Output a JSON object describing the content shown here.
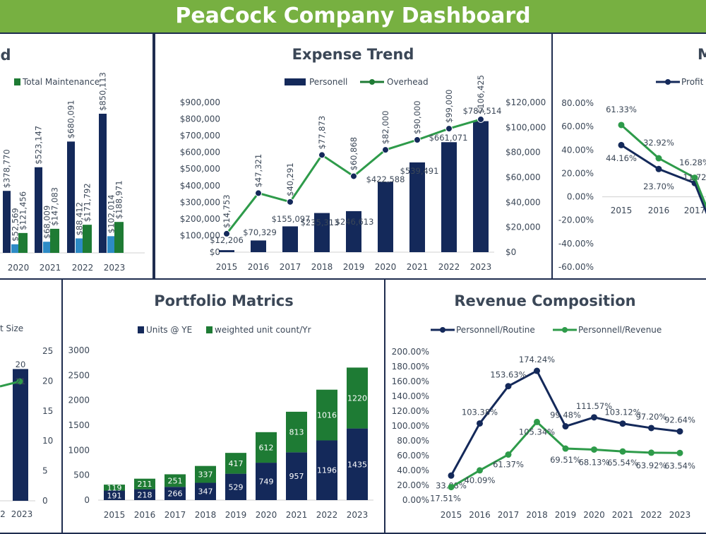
{
  "header": {
    "title": "PeaCock Company Dashboard"
  },
  "colors": {
    "navy": "#14295a",
    "green": "#1e7b34",
    "lightgreen": "#2e9b4a",
    "blue": "#2d8bc6",
    "header": "#77b041"
  },
  "chart_data": [
    {
      "id": "maintenance",
      "type": "bar",
      "title": "d",
      "legend": [
        "Total Maintenance"
      ],
      "categories": [
        "2020",
        "2021",
        "2022",
        "2023"
      ],
      "series": [
        {
          "values": [
            378770,
            523147,
            680091,
            850113
          ],
          "labels": [
            "$378,770",
            "$523,147",
            "$680,091",
            "$850,113"
          ]
        },
        {
          "values": [
            52569,
            68009,
            88412,
            102014
          ],
          "labels": [
            "$52,569",
            "$68,009",
            "$88,412",
            "$102,014"
          ]
        },
        {
          "name": "Total Maintenance",
          "values": [
            121456,
            147083,
            171792,
            188971
          ],
          "labels": [
            "$121,456",
            "$147,083",
            "$171,792",
            "$188,971"
          ]
        }
      ]
    },
    {
      "id": "expense",
      "type": "bar",
      "title": "Expense Trend",
      "categories": [
        "2015",
        "2016",
        "2017",
        "2018",
        "2019",
        "2020",
        "2021",
        "2022",
        "2023"
      ],
      "series": [
        {
          "name": "Personell",
          "type": "bar",
          "axis": "left",
          "values": [
            12206,
            70329,
            155097,
            235313,
            246613,
            422588,
            539491,
            661071,
            787514
          ],
          "labels": [
            "$12,206",
            "$70,329",
            "$155,097",
            "$235,313",
            "$246,613",
            "$422,588",
            "$539,491",
            "$661,071",
            "$787,514"
          ]
        },
        {
          "name": "Overhead",
          "type": "line",
          "axis": "right",
          "values": [
            14753,
            47321,
            40291,
            77873,
            60868,
            82000,
            90000,
            99000,
            106425
          ],
          "labels": [
            "$14,753",
            "$47,321",
            "$40,291",
            "$77,873",
            "$60,868",
            "$82,000",
            "$90,000",
            "$99,000",
            "$106,425"
          ]
        }
      ],
      "y_left": {
        "ylim": [
          0,
          900000
        ],
        "ticks": [
          "$0",
          "$100,000",
          "$200,000",
          "$300,000",
          "$400,000",
          "$500,000",
          "$600,000",
          "$700,000",
          "$800,000",
          "$900,000"
        ]
      },
      "y_right": {
        "ylim": [
          0,
          120000
        ],
        "ticks": [
          "$0",
          "$20,000",
          "$40,000",
          "$60,000",
          "$80,000",
          "$100,000",
          "$120,000"
        ]
      }
    },
    {
      "id": "margin",
      "type": "line",
      "title": "M",
      "legend": [
        "Profit"
      ],
      "categories": [
        "2015",
        "2016",
        "2017"
      ],
      "series": [
        {
          "name": "Profit",
          "values": [
            44.16,
            23.7,
            11.72
          ],
          "labels": [
            "44.16%",
            "23.70%",
            "11.72"
          ]
        },
        {
          "values": [
            61.33,
            32.92,
            16.28
          ],
          "labels": [
            "61.33%",
            "32.92%",
            "16.28%"
          ]
        }
      ],
      "ylim": [
        -60,
        80
      ],
      "ticks": [
        "-60.00%",
        "-40.00%",
        "-20.00%",
        "0.00%",
        "20.00%",
        "40.00%",
        "60.00%",
        "80.00%"
      ]
    },
    {
      "id": "size",
      "type": "bar",
      "title": "",
      "legend": [
        "t Size"
      ],
      "categories": [
        "2",
        "2023"
      ],
      "bar_value": 22,
      "bar_label": "20",
      "line_label": "21",
      "ylim": [
        0,
        25
      ],
      "ticks": [
        "0",
        "5",
        "10",
        "15",
        "20",
        "25"
      ]
    },
    {
      "id": "portfolio",
      "type": "bar",
      "stacked": true,
      "title": "Portfolio Matrics",
      "categories": [
        "2015",
        "2016",
        "2017",
        "2018",
        "2019",
        "2020",
        "2021",
        "2022",
        "2023"
      ],
      "series": [
        {
          "name": "Units @ YE",
          "values": [
            191,
            218,
            266,
            347,
            529,
            749,
            957,
            1196,
            1435
          ]
        },
        {
          "name": "weighted unit count/Yr",
          "values": [
            119,
            211,
            251,
            337,
            417,
            612,
            813,
            1016,
            1220
          ]
        }
      ],
      "ylim": [
        0,
        3000
      ],
      "ticks": [
        "0",
        "500",
        "1000",
        "1500",
        "2000",
        "2500",
        "3000"
      ]
    },
    {
      "id": "revenue",
      "type": "line",
      "title": "Revenue Composition",
      "categories": [
        "2015",
        "2016",
        "2017",
        "2018",
        "2019",
        "2020",
        "2021",
        "2022",
        "2023"
      ],
      "series": [
        {
          "name": "Personnell/Routine",
          "values": [
            33.08,
            103.38,
            153.63,
            174.24,
            99.48,
            111.57,
            103.12,
            97.2,
            92.64
          ],
          "labels": [
            "33.08%",
            "103.38%",
            "153.63%",
            "174.24%",
            "99.48%",
            "111.57%",
            "103.12%",
            "97.20%",
            "92.64%"
          ]
        },
        {
          "name": "Personnell/Revenue",
          "values": [
            17.51,
            40.09,
            61.37,
            105.34,
            69.51,
            68.13,
            65.54,
            63.92,
            63.54
          ],
          "labels": [
            "17.51%",
            "40.09%",
            "61.37%",
            "105.34%",
            "69.51%",
            "68.13%",
            "65.54%",
            "63.92%",
            "63.54%"
          ]
        }
      ],
      "ylim": [
        0,
        200
      ],
      "ticks": [
        "0.00%",
        "20.00%",
        "40.00%",
        "60.00%",
        "80.00%",
        "100.00%",
        "120.00%",
        "140.00%",
        "160.00%",
        "180.00%",
        "200.00%"
      ]
    }
  ]
}
